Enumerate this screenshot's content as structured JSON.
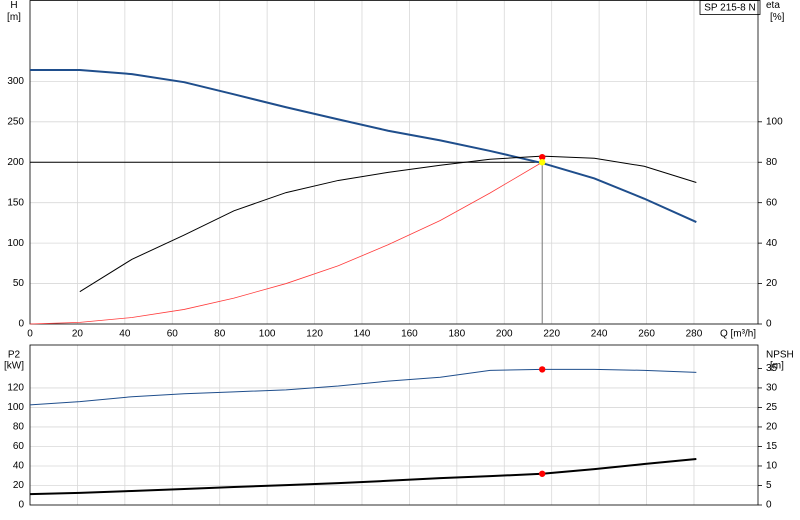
{
  "chart_data": [
    {
      "type": "line",
      "title": "SP 215-8 N",
      "xlabel": "Q [m³/h]",
      "ylabel": "H",
      "yunit": "[m]",
      "y2label": "eta",
      "y2unit": "[%]",
      "xlim": [
        0,
        307
      ],
      "xticks": [
        0,
        20,
        40,
        60,
        80,
        100,
        120,
        140,
        160,
        180,
        200,
        220,
        240,
        260,
        280
      ],
      "ylim": [
        0,
        400
      ],
      "yticks": [
        0,
        50,
        100,
        150,
        200,
        250,
        300
      ],
      "y2lim": [
        0,
        160
      ],
      "y2ticks": [
        0,
        20,
        40,
        60,
        80,
        100
      ],
      "grid": true,
      "series": [
        {
          "color": "#1f4e8c",
          "line_width": 2,
          "x": [
            0,
            21,
            43,
            65,
            86,
            108,
            130,
            151,
            173,
            194,
            216,
            238,
            259,
            281
          ],
          "values": [
            314,
            314,
            309,
            299,
            284,
            268,
            253,
            239,
            227,
            214,
            199,
            180,
            155,
            126
          ]
        },
        {
          "color": "#000000",
          "line_width": 1,
          "axis": "y2",
          "x": [
            21,
            43,
            65,
            86,
            108,
            130,
            151,
            173,
            194,
            216,
            238,
            259,
            281
          ],
          "values": [
            16,
            32,
            44,
            56,
            65,
            71,
            75,
            78.5,
            81.5,
            83,
            82,
            78,
            70
          ]
        },
        {
          "color": "#ff3b3b",
          "line_width": 0.8,
          "x": [
            0,
            21,
            43,
            65,
            86,
            108,
            130,
            151,
            173,
            194,
            216
          ],
          "values": [
            0,
            2,
            8,
            18,
            32,
            50,
            72,
            98,
            128,
            162,
            200
          ]
        }
      ],
      "markers": [
        {
          "x": 216,
          "y": 82.5,
          "axis": "y2",
          "color": "#ff0000"
        },
        {
          "x": 216,
          "y": 200,
          "color": "#ffff00",
          "guides": true
        }
      ]
    },
    {
      "type": "line",
      "ylabel": "P2",
      "yunit": "[kW]",
      "y2label": "NPSH",
      "y2unit": "[m]",
      "xlim": [
        0,
        307
      ],
      "xticks": [
        0,
        20,
        40,
        60,
        80,
        100,
        120,
        140,
        160,
        180,
        200,
        220,
        240,
        260,
        280
      ],
      "ylim": [
        0,
        164
      ],
      "yticks": [
        0,
        20,
        40,
        60,
        80,
        100,
        120
      ],
      "y2lim": [
        0,
        41
      ],
      "y2ticks": [
        0,
        5,
        10,
        15,
        20,
        25,
        30,
        35
      ],
      "grid": true,
      "series": [
        {
          "color": "#1f4e8c",
          "line_width": 1,
          "x": [
            0,
            21,
            43,
            65,
            86,
            108,
            130,
            151,
            173,
            194,
            216,
            238,
            259,
            281
          ],
          "values": [
            102.6,
            106,
            111,
            114,
            116,
            118,
            122,
            127,
            131,
            138,
            139,
            139,
            138,
            136
          ]
        },
        {
          "color": "#000000",
          "line_width": 2,
          "axis": "y2",
          "x": [
            0,
            21,
            43,
            65,
            86,
            108,
            130,
            151,
            173,
            194,
            216,
            238,
            259,
            281
          ],
          "values": [
            2.8,
            3.1,
            3.6,
            4.1,
            4.6,
            5.1,
            5.6,
            6.2,
            6.9,
            7.4,
            8,
            9.2,
            10.5,
            11.8
          ]
        }
      ],
      "markers": [
        {
          "x": 216,
          "y": 139,
          "color": "#ff0000"
        },
        {
          "x": 216,
          "y": 8,
          "axis": "y2",
          "color": "#ff0000"
        }
      ]
    }
  ]
}
